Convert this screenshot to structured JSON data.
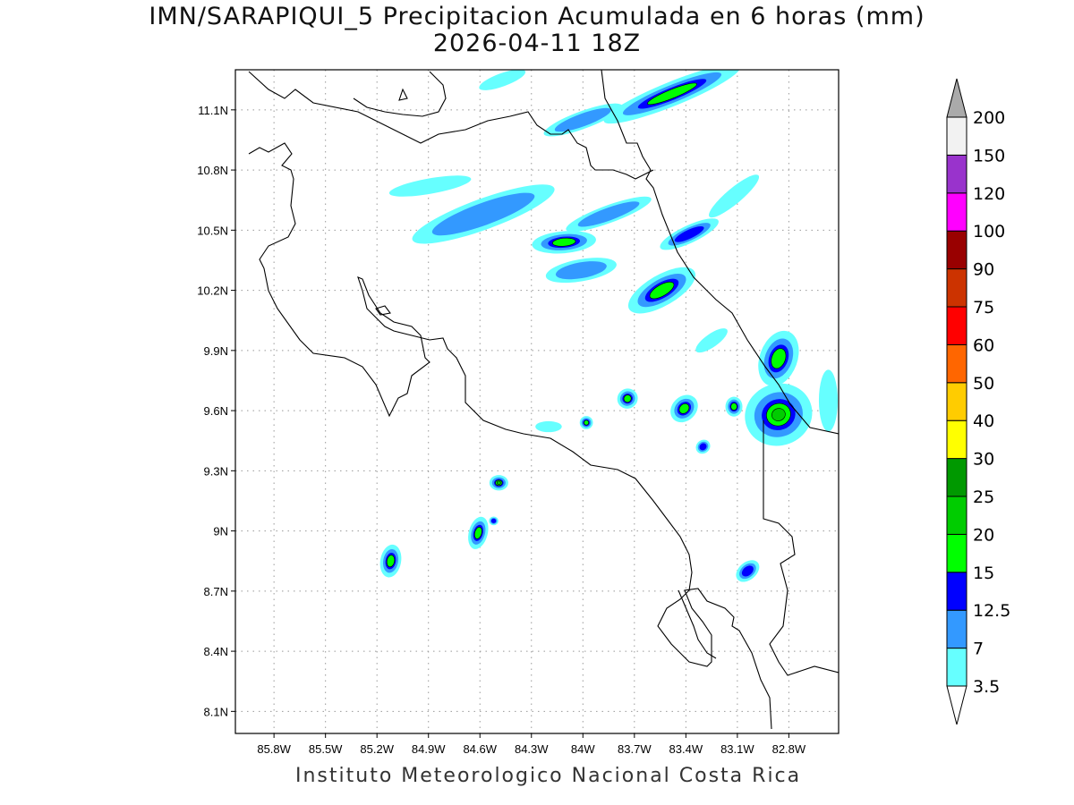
{
  "title": {
    "line1": "IMN/SARAPIQUI_5 Precipitacion Acumulada en 6 horas (mm)",
    "line2": "2026-04-11 18Z"
  },
  "footer": "Instituto Meteorologico Nacional Costa Rica",
  "map": {
    "lon_range": [
      -86.025,
      -82.51
    ],
    "lat_range": [
      7.99,
      11.3
    ],
    "lon_ticks": [
      {
        "value": -85.8,
        "label": "85.8W"
      },
      {
        "value": -85.5,
        "label": "85.5W"
      },
      {
        "value": -85.2,
        "label": "85.2W"
      },
      {
        "value": -84.9,
        "label": "84.9W"
      },
      {
        "value": -84.6,
        "label": "84.6W"
      },
      {
        "value": -84.3,
        "label": "84.3W"
      },
      {
        "value": -84.0,
        "label": "84W"
      },
      {
        "value": -83.7,
        "label": "83.7W"
      },
      {
        "value": -83.4,
        "label": "83.4W"
      },
      {
        "value": -83.1,
        "label": "83.1W"
      },
      {
        "value": -82.8,
        "label": "82.8W"
      }
    ],
    "lat_ticks": [
      {
        "value": 11.1,
        "label": "11.1N"
      },
      {
        "value": 10.8,
        "label": "10.8N"
      },
      {
        "value": 10.5,
        "label": "10.5N"
      },
      {
        "value": 10.2,
        "label": "10.2N"
      },
      {
        "value": 9.9,
        "label": "9.9N"
      },
      {
        "value": 9.6,
        "label": "9.6N"
      },
      {
        "value": 9.3,
        "label": "9.3N"
      },
      {
        "value": 9.0,
        "label": "9N"
      },
      {
        "value": 8.7,
        "label": "8.7N"
      },
      {
        "value": 8.4,
        "label": "8.4N"
      },
      {
        "value": 8.1,
        "label": "8.1N"
      }
    ],
    "precip_cells": [
      {
        "lon": -83.48,
        "lat": 11.18,
        "rx": 0.39,
        "ry": 0.055,
        "angle": -22,
        "level": 4
      },
      {
        "lon": -84.0,
        "lat": 11.05,
        "rx": 0.22,
        "ry": 0.04,
        "angle": -20,
        "level": 2
      },
      {
        "lon": -84.47,
        "lat": 11.25,
        "rx": 0.13,
        "ry": 0.03,
        "angle": -20,
        "level": 1
      },
      {
        "lon": -84.58,
        "lat": 10.58,
        "rx": 0.4,
        "ry": 0.07,
        "angle": -20,
        "level": 2
      },
      {
        "lon": -84.11,
        "lat": 10.44,
        "rx": 0.17,
        "ry": 0.05,
        "angle": -5,
        "level": 4
      },
      {
        "lon": -83.54,
        "lat": 10.2,
        "rx": 0.2,
        "ry": 0.07,
        "angle": -30,
        "level": 4
      },
      {
        "lon": -83.38,
        "lat": 10.48,
        "rx": 0.17,
        "ry": 0.04,
        "angle": -25,
        "level": 3
      },
      {
        "lon": -83.85,
        "lat": 10.58,
        "rx": 0.24,
        "ry": 0.04,
        "angle": -20,
        "level": 2
      },
      {
        "lon": -84.89,
        "lat": 10.72,
        "rx": 0.22,
        "ry": 0.035,
        "angle": -10,
        "level": 1
      },
      {
        "lon": -84.01,
        "lat": 10.3,
        "rx": 0.19,
        "ry": 0.05,
        "angle": -10,
        "level": 2
      },
      {
        "lon": -82.86,
        "lat": 9.86,
        "rx": 0.1,
        "ry": 0.13,
        "angle": 20,
        "level": 4
      },
      {
        "lon": -82.86,
        "lat": 9.58,
        "rx": 0.18,
        "ry": 0.14,
        "angle": -20,
        "level": 5
      },
      {
        "lon": -83.41,
        "lat": 9.61,
        "rx": 0.08,
        "ry": 0.055,
        "angle": -45,
        "level": 4
      },
      {
        "lon": -83.74,
        "lat": 9.66,
        "rx": 0.055,
        "ry": 0.045,
        "angle": -30,
        "level": 4
      },
      {
        "lon": -83.98,
        "lat": 9.54,
        "rx": 0.035,
        "ry": 0.03,
        "angle": 0,
        "level": 4
      },
      {
        "lon": -84.49,
        "lat": 9.24,
        "rx": 0.05,
        "ry": 0.035,
        "angle": 0,
        "level": 5
      },
      {
        "lon": -84.61,
        "lat": 8.99,
        "rx": 0.05,
        "ry": 0.075,
        "angle": 15,
        "level": 4
      },
      {
        "lon": -85.12,
        "lat": 8.85,
        "rx": 0.055,
        "ry": 0.075,
        "angle": 10,
        "level": 4
      },
      {
        "lon": -83.12,
        "lat": 9.62,
        "rx": 0.045,
        "ry": 0.045,
        "angle": 0,
        "level": 4
      },
      {
        "lon": -83.04,
        "lat": 8.8,
        "rx": 0.07,
        "ry": 0.04,
        "angle": -40,
        "level": 3
      },
      {
        "lon": -82.57,
        "lat": 9.65,
        "rx": 0.05,
        "ry": 0.14,
        "angle": 0,
        "level": 1
      },
      {
        "lon": -84.52,
        "lat": 9.05,
        "rx": 0.025,
        "ry": 0.02,
        "angle": 0,
        "level": 3
      },
      {
        "lon": -83.3,
        "lat": 9.42,
        "rx": 0.04,
        "ry": 0.03,
        "angle": -40,
        "level": 3
      },
      {
        "lon": -83.12,
        "lat": 10.67,
        "rx": 0.17,
        "ry": 0.035,
        "angle": -40,
        "level": 1
      },
      {
        "lon": -83.25,
        "lat": 9.95,
        "rx": 0.1,
        "ry": 0.03,
        "angle": -35,
        "level": 1
      },
      {
        "lon": -84.2,
        "lat": 9.52,
        "rx": 0.07,
        "ry": 0.025,
        "angle": 0,
        "level": 1
      }
    ]
  },
  "colorbar": {
    "levels": [
      {
        "label": "3.5",
        "color": "#66ffff"
      },
      {
        "label": "7",
        "color": "#3399ff"
      },
      {
        "label": "12.5",
        "color": "#0000ff"
      },
      {
        "label": "15",
        "color": "#00ff00"
      },
      {
        "label": "20",
        "color": "#00cc00"
      },
      {
        "label": "25",
        "color": "#009900"
      },
      {
        "label": "30",
        "color": "#ffff00"
      },
      {
        "label": "40",
        "color": "#ffcc00"
      },
      {
        "label": "50",
        "color": "#ff6600"
      },
      {
        "label": "60",
        "color": "#ff0000"
      },
      {
        "label": "75",
        "color": "#cc3300"
      },
      {
        "label": "90",
        "color": "#990000"
      },
      {
        "label": "100",
        "color": "#ff00ff"
      },
      {
        "label": "120",
        "color": "#9933cc"
      },
      {
        "label": "150",
        "color": "#f2f2f2"
      },
      {
        "label": "200",
        "color": "#aaaaaa"
      }
    ]
  }
}
